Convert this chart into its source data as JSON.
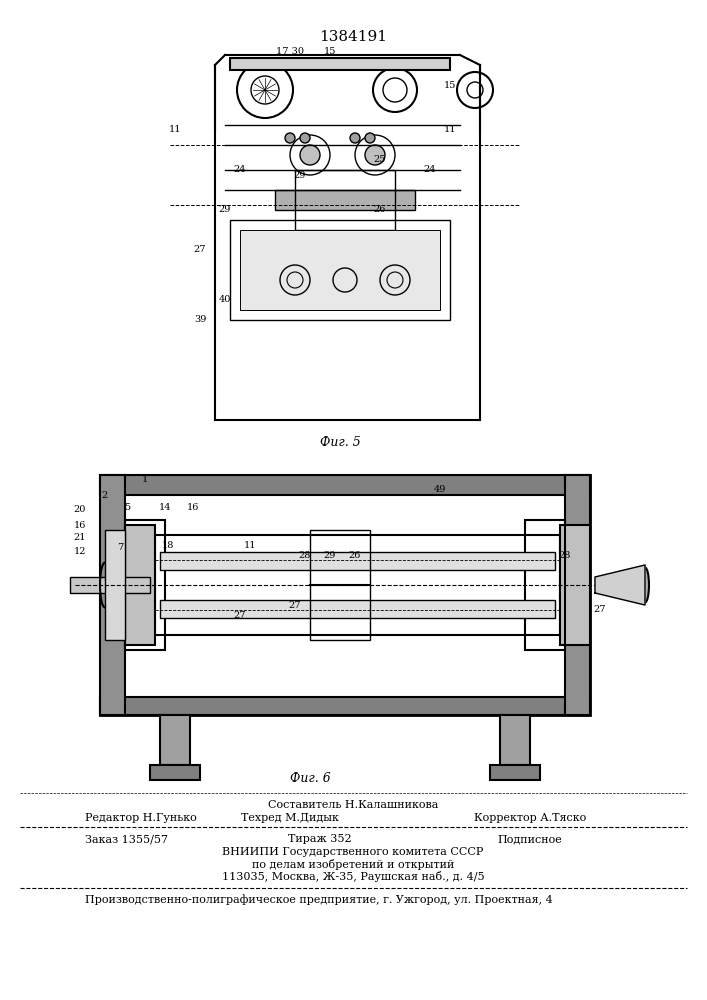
{
  "patent_number": "1384191",
  "fig5_label": "Фиг. 5",
  "fig6_label": "Фиг. 6",
  "composer": "Составитель Н.Калашникова",
  "editor": "Редактор Н.Гунько",
  "tech_editor": "Техред М.Дидык",
  "corrector": "Корректор А.Тяско",
  "order": "Заказ 1355/57",
  "circulation": "Тираж 352",
  "subscription": "Подписное",
  "organization_line1": "ВНИИПИ Государственного комитета СССР",
  "organization_line2": "по делам изобретений и открытий",
  "organization_line3": "113035, Москва, Ж-35, Раушская наб., д. 4/5",
  "enterprise": "Производственно-полиграфическое предприятие, г. Ужгород, ул. Проектная, 4",
  "bg_color": "#ffffff",
  "line_color": "#000000",
  "text_color": "#000000"
}
